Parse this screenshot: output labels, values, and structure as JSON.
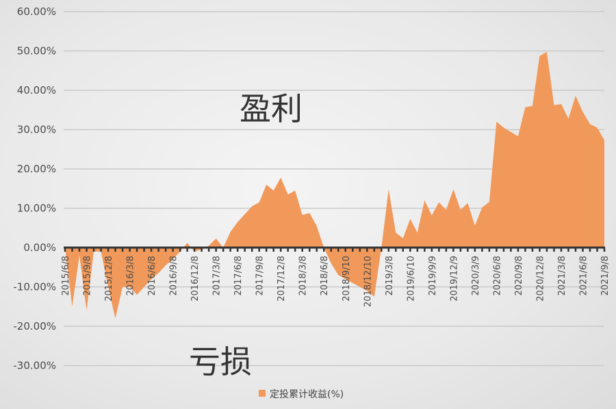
{
  "chart_data": {
    "type": "area",
    "title": "",
    "xlabel": "",
    "ylabel": "",
    "ylim": [
      -30,
      60
    ],
    "yticks": [
      "60.00%",
      "50.00%",
      "40.00%",
      "30.00%",
      "20.00%",
      "10.00%",
      "0.00%",
      "-10.00%",
      "-20.00%",
      "-30.00%"
    ],
    "ytick_values": [
      60,
      50,
      40,
      30,
      20,
      10,
      0,
      -10,
      -20,
      -30
    ],
    "xtick_labels": [
      "2015/6/8",
      "2015/9/8",
      "2015/12/8",
      "2016/3/8",
      "2016/6/8",
      "2016/9/8",
      "2016/12/8",
      "2017/3/8",
      "2017/6/8",
      "2017/9/8",
      "2017/12/8",
      "2018/3/8",
      "2018/6/8",
      "2018/9/10",
      "2018/12/10",
      "2019/3/8",
      "2019/6/10",
      "2019/9/9",
      "2019/12/9",
      "2020/3/9",
      "2020/6/8",
      "2020/9/8",
      "2020/12/8",
      "2021/3/8",
      "2021/6/8",
      "2021/9/8"
    ],
    "x": [
      "2015/6",
      "2015/7",
      "2015/8",
      "2015/9",
      "2015/10",
      "2015/11",
      "2015/12",
      "2016/1",
      "2016/2",
      "2016/3",
      "2016/4",
      "2016/5",
      "2016/6",
      "2016/7",
      "2016/8",
      "2016/9",
      "2016/10",
      "2016/11",
      "2016/12",
      "2017/1",
      "2017/2",
      "2017/3",
      "2017/4",
      "2017/5",
      "2017/6",
      "2017/7",
      "2017/8",
      "2017/9",
      "2017/10",
      "2017/11",
      "2017/12",
      "2018/1",
      "2018/2",
      "2018/3",
      "2018/4",
      "2018/5",
      "2018/6",
      "2018/7",
      "2018/8",
      "2018/9",
      "2018/10",
      "2018/11",
      "2018/12",
      "2019/1",
      "2019/2",
      "2019/3",
      "2019/4",
      "2019/5",
      "2019/6",
      "2019/7",
      "2019/8",
      "2019/9",
      "2019/10",
      "2019/11",
      "2019/12",
      "2020/1",
      "2020/2",
      "2020/3",
      "2020/4",
      "2020/5",
      "2020/6",
      "2020/7",
      "2020/8",
      "2020/9",
      "2020/10",
      "2020/11",
      "2020/12",
      "2021/1",
      "2021/2",
      "2021/3",
      "2021/4",
      "2021/5",
      "2021/6",
      "2021/7",
      "2021/8",
      "2021/9"
    ],
    "series": [
      {
        "name": "定投累计收益(%)",
        "color": "#f0995a",
        "values": [
          0,
          -15,
          -2,
          -16,
          -1,
          -1,
          -10,
          -18,
          -10,
          -10,
          -12,
          -10,
          -8,
          -6.5,
          -4.5,
          -3,
          -1,
          1.2,
          -1,
          -0.5,
          0.5,
          2.3,
          0,
          4,
          6.5,
          8.5,
          10.5,
          11.5,
          16,
          14.5,
          17.8,
          13.5,
          14.5,
          8.3,
          8.8,
          5.5,
          0,
          -4,
          -7,
          -8,
          -9,
          -10,
          -11,
          -12.5,
          0,
          14.8,
          3.8,
          2.4,
          7.3,
          3.8,
          12,
          8.2,
          11.5,
          9.6,
          14.8,
          9.6,
          11.3,
          5.6,
          10.2,
          11.6,
          32,
          30.5,
          29.4,
          28.3,
          35.7,
          36,
          48.7,
          49.8,
          36.2,
          36.5,
          32.8,
          38.6,
          34.5,
          31.4,
          30.5,
          27.3
        ]
      }
    ],
    "grid": true,
    "legend": "bottom",
    "annotations": [
      "盈利",
      "亏损"
    ]
  }
}
